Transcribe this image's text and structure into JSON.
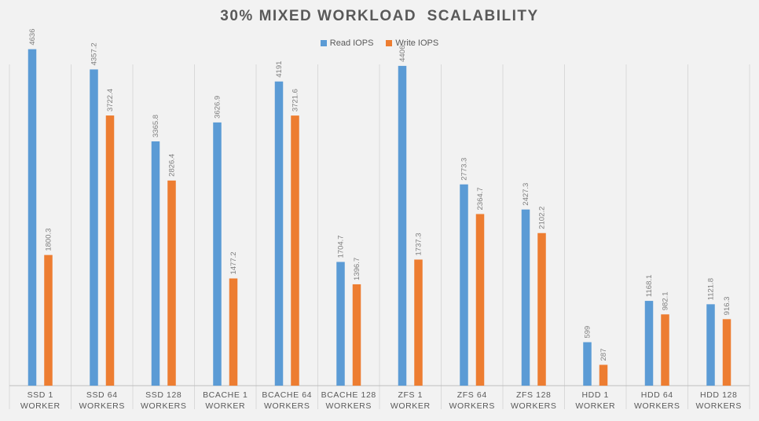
{
  "chart_data": {
    "type": "bar",
    "title": "30% MIXED WORKLOAD  SCALABILITY",
    "categories": [
      [
        "SSD 1",
        "WORKER"
      ],
      [
        "SSD 64",
        "WORKERS"
      ],
      [
        "SSD 128",
        "WORKERS"
      ],
      [
        "BCACHE 1",
        "WORKER"
      ],
      [
        "BCACHE 64",
        "WORKERS"
      ],
      [
        "BCACHE 128",
        "WORKERS"
      ],
      [
        "ZFS 1",
        "WORKER"
      ],
      [
        "ZFS 64",
        "WORKERS"
      ],
      [
        "ZFS 128",
        "WORKERS"
      ],
      [
        "HDD 1",
        "WORKER"
      ],
      [
        "HDD 64",
        "WORKERS"
      ],
      [
        "HDD 128",
        "WORKERS"
      ]
    ],
    "series": [
      {
        "name": "Read IOPS",
        "color": "#5b9bd5",
        "values": [
          4636,
          4357.2,
          3365.8,
          3626.9,
          4191,
          1704.7,
          4406,
          2773.3,
          2427.3,
          599,
          1168.1,
          1121.8
        ]
      },
      {
        "name": "Write IOPS",
        "color": "#ed7d31",
        "values": [
          1800.3,
          3722.4,
          2826.4,
          1477.2,
          3721.6,
          1396.7,
          1737.3,
          2364.7,
          2102.2,
          287,
          982.1,
          916.3
        ]
      }
    ],
    "ylim": [
      0,
      5000
    ],
    "grid": "vertical category separators",
    "legend_position": "top",
    "data_labels": "rotated above bars"
  }
}
